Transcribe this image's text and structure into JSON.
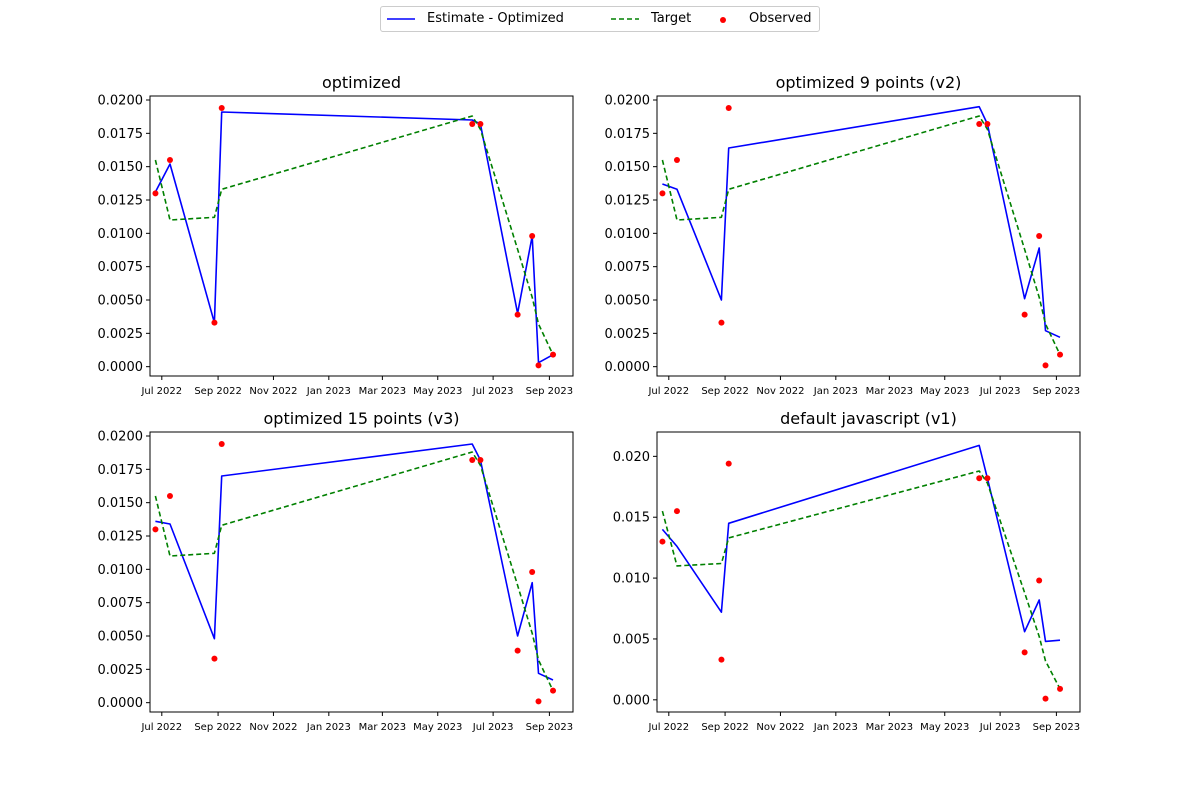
{
  "legend": {
    "placement": "top-center",
    "items": [
      {
        "label": "Estimate - Optimized",
        "style": "solid",
        "color": "#0000ff"
      },
      {
        "label": "Target",
        "style": "dashed",
        "color": "#008000"
      },
      {
        "label": "Observed",
        "style": "marker",
        "color": "#ff0000"
      }
    ]
  },
  "colors": {
    "estimate": "#0000ff",
    "target": "#008000",
    "observed": "#ff0000"
  },
  "x_tick_labels": [
    "Jul 2022",
    "Sep 2022",
    "Nov 2022",
    "Jan 2023",
    "Mar 2023",
    "May 2023",
    "Jul 2023",
    "Sep 2023"
  ],
  "x_tick_dates": [
    "2022-07-01",
    "2022-09-01",
    "2022-11-01",
    "2023-01-01",
    "2023-03-01",
    "2023-05-01",
    "2023-07-01",
    "2023-09-01"
  ],
  "chart_data": [
    {
      "type": "line",
      "title": "optimized",
      "xlabel": "",
      "ylabel": "",
      "grid": false,
      "xlim": [
        "2022-06-18",
        "2023-09-27"
      ],
      "ylim": [
        -0.0007,
        0.0203
      ],
      "y_ticks": [
        0.0,
        0.0025,
        0.005,
        0.0075,
        0.01,
        0.0125,
        0.015,
        0.0175,
        0.02
      ],
      "y_tick_labels": [
        "0.0000",
        "0.0025",
        "0.0050",
        "0.0075",
        "0.0100",
        "0.0125",
        "0.0150",
        "0.0175",
        "0.0200"
      ],
      "series": [
        {
          "name": "Estimate - Optimized",
          "x": [
            "2022-06-24",
            "2022-07-10",
            "2022-08-28",
            "2022-09-05",
            "2023-06-08",
            "2023-06-17",
            "2023-07-28",
            "2023-08-13",
            "2023-08-20",
            "2023-09-05"
          ],
          "y": [
            0.0131,
            0.0152,
            0.0033,
            0.0191,
            0.0185,
            0.0182,
            0.004,
            0.0098,
            0.0003,
            0.0009
          ]
        },
        {
          "name": "Target",
          "x": [
            "2022-06-24",
            "2022-07-10",
            "2022-08-28",
            "2022-09-05",
            "2023-06-08",
            "2023-06-17",
            "2023-07-28",
            "2023-08-13",
            "2023-08-20",
            "2023-09-05"
          ],
          "y": [
            0.0155,
            0.011,
            0.0112,
            0.0133,
            0.0188,
            0.0178,
            0.0088,
            0.0052,
            0.0032,
            0.0009
          ]
        },
        {
          "name": "Observed",
          "x": [
            "2022-06-24",
            "2022-07-10",
            "2022-08-28",
            "2022-09-05",
            "2023-06-08",
            "2023-06-17",
            "2023-07-28",
            "2023-08-13",
            "2023-08-20",
            "2023-09-05"
          ],
          "y": [
            0.013,
            0.0155,
            0.0033,
            0.0194,
            0.0182,
            0.0182,
            0.0039,
            0.0098,
            0.0001,
            0.0009
          ]
        }
      ]
    },
    {
      "type": "line",
      "title": "optimized 9 points (v2)",
      "xlabel": "",
      "ylabel": "",
      "grid": false,
      "xlim": [
        "2022-06-18",
        "2023-09-27"
      ],
      "ylim": [
        -0.0007,
        0.0203
      ],
      "y_ticks": [
        0.0,
        0.0025,
        0.005,
        0.0075,
        0.01,
        0.0125,
        0.015,
        0.0175,
        0.02
      ],
      "y_tick_labels": [
        "0.0000",
        "0.0025",
        "0.0050",
        "0.0075",
        "0.0100",
        "0.0125",
        "0.0150",
        "0.0175",
        "0.0200"
      ],
      "series": [
        {
          "name": "Estimate - Optimized",
          "x": [
            "2022-06-24",
            "2022-07-10",
            "2022-08-28",
            "2022-09-05",
            "2023-06-08",
            "2023-06-17",
            "2023-07-28",
            "2023-08-13",
            "2023-08-20",
            "2023-09-05"
          ],
          "y": [
            0.0137,
            0.0133,
            0.005,
            0.0164,
            0.0195,
            0.0182,
            0.0051,
            0.0089,
            0.0027,
            0.0022
          ]
        },
        {
          "name": "Target",
          "x": [
            "2022-06-24",
            "2022-07-10",
            "2022-08-28",
            "2022-09-05",
            "2023-06-08",
            "2023-06-17",
            "2023-07-28",
            "2023-08-13",
            "2023-08-20",
            "2023-09-05"
          ],
          "y": [
            0.0155,
            0.011,
            0.0112,
            0.0133,
            0.0188,
            0.0178,
            0.0088,
            0.0052,
            0.0032,
            0.0009
          ]
        },
        {
          "name": "Observed",
          "x": [
            "2022-06-24",
            "2022-07-10",
            "2022-08-28",
            "2022-09-05",
            "2023-06-08",
            "2023-06-17",
            "2023-07-28",
            "2023-08-13",
            "2023-08-20",
            "2023-09-05"
          ],
          "y": [
            0.013,
            0.0155,
            0.0033,
            0.0194,
            0.0182,
            0.0182,
            0.0039,
            0.0098,
            0.0001,
            0.0009
          ]
        }
      ]
    },
    {
      "type": "line",
      "title": "optimized 15 points (v3)",
      "xlabel": "",
      "ylabel": "",
      "grid": false,
      "xlim": [
        "2022-06-18",
        "2023-09-27"
      ],
      "ylim": [
        -0.0007,
        0.0203
      ],
      "y_ticks": [
        0.0,
        0.0025,
        0.005,
        0.0075,
        0.01,
        0.0125,
        0.015,
        0.0175,
        0.02
      ],
      "y_tick_labels": [
        "0.0000",
        "0.0025",
        "0.0050",
        "0.0075",
        "0.0100",
        "0.0125",
        "0.0150",
        "0.0175",
        "0.0200"
      ],
      "series": [
        {
          "name": "Estimate - Optimized",
          "x": [
            "2022-06-24",
            "2022-07-10",
            "2022-08-28",
            "2022-09-05",
            "2023-06-08",
            "2023-06-17",
            "2023-07-28",
            "2023-08-13",
            "2023-08-20",
            "2023-09-05"
          ],
          "y": [
            0.0136,
            0.0134,
            0.0048,
            0.017,
            0.0194,
            0.0182,
            0.005,
            0.009,
            0.0022,
            0.0017
          ]
        },
        {
          "name": "Target",
          "x": [
            "2022-06-24",
            "2022-07-10",
            "2022-08-28",
            "2022-09-05",
            "2023-06-08",
            "2023-06-17",
            "2023-07-28",
            "2023-08-13",
            "2023-08-20",
            "2023-09-05"
          ],
          "y": [
            0.0155,
            0.011,
            0.0112,
            0.0133,
            0.0188,
            0.0178,
            0.0088,
            0.0052,
            0.0032,
            0.0009
          ]
        },
        {
          "name": "Observed",
          "x": [
            "2022-06-24",
            "2022-07-10",
            "2022-08-28",
            "2022-09-05",
            "2023-06-08",
            "2023-06-17",
            "2023-07-28",
            "2023-08-13",
            "2023-08-20",
            "2023-09-05"
          ],
          "y": [
            0.013,
            0.0155,
            0.0033,
            0.0194,
            0.0182,
            0.0182,
            0.0039,
            0.0098,
            0.0001,
            0.0009
          ]
        }
      ]
    },
    {
      "type": "line",
      "title": "default javascript (v1)",
      "xlabel": "",
      "ylabel": "",
      "grid": false,
      "xlim": [
        "2022-06-18",
        "2023-09-27"
      ],
      "ylim": [
        -0.001,
        0.022
      ],
      "y_ticks": [
        0.0,
        0.005,
        0.01,
        0.015,
        0.02
      ],
      "y_tick_labels": [
        "0.000",
        "0.005",
        "0.010",
        "0.015",
        "0.020"
      ],
      "series": [
        {
          "name": "Estimate - Optimized",
          "x": [
            "2022-06-24",
            "2022-07-10",
            "2022-08-28",
            "2022-09-05",
            "2023-06-08",
            "2023-06-17",
            "2023-07-28",
            "2023-08-13",
            "2023-08-20",
            "2023-09-05"
          ],
          "y": [
            0.014,
            0.0126,
            0.0072,
            0.0145,
            0.0209,
            0.0182,
            0.0056,
            0.0082,
            0.0048,
            0.0049
          ]
        },
        {
          "name": "Target",
          "x": [
            "2022-06-24",
            "2022-07-10",
            "2022-08-28",
            "2022-09-05",
            "2023-06-08",
            "2023-06-17",
            "2023-07-28",
            "2023-08-13",
            "2023-08-20",
            "2023-09-05"
          ],
          "y": [
            0.0155,
            0.011,
            0.0112,
            0.0133,
            0.0188,
            0.0178,
            0.0088,
            0.0052,
            0.0032,
            0.0009
          ]
        },
        {
          "name": "Observed",
          "x": [
            "2022-06-24",
            "2022-07-10",
            "2022-08-28",
            "2022-09-05",
            "2023-06-08",
            "2023-06-17",
            "2023-07-28",
            "2023-08-13",
            "2023-08-20",
            "2023-09-05"
          ],
          "y": [
            0.013,
            0.0155,
            0.0033,
            0.0194,
            0.0182,
            0.0182,
            0.0039,
            0.0098,
            0.0001,
            0.0009
          ]
        }
      ]
    }
  ]
}
